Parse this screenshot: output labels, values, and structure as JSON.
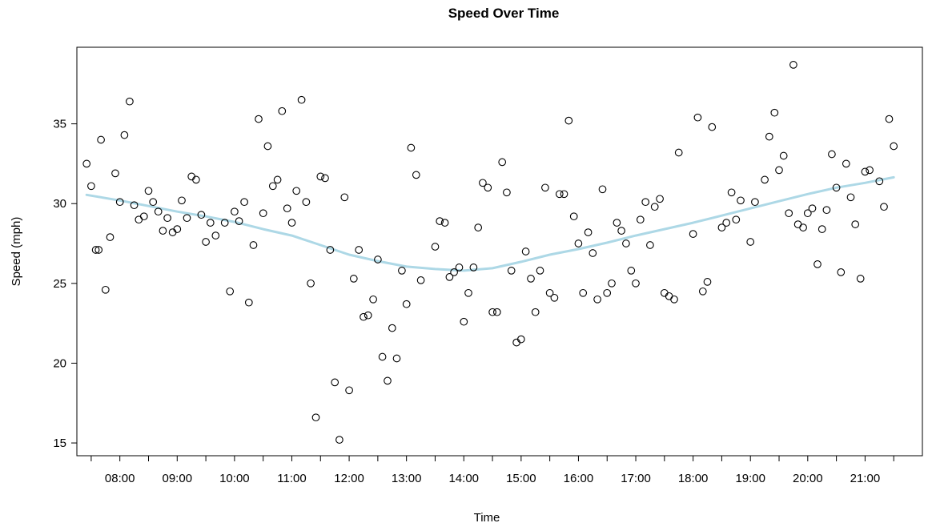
{
  "chart_data": {
    "type": "scatter",
    "title": "Speed Over Time",
    "xlabel": "Time",
    "ylabel": "Speed (mph)",
    "x_tick_labels": [
      "08:00",
      "09:00",
      "10:00",
      "11:00",
      "12:00",
      "13:00",
      "14:00",
      "15:00",
      "16:00",
      "17:00",
      "18:00",
      "19:00",
      "20:00",
      "21:00"
    ],
    "x_ticks_hours": [
      8,
      9,
      10,
      11,
      12,
      13,
      14,
      15,
      16,
      17,
      18,
      19,
      20,
      21
    ],
    "x_minor_ticks_hours": [
      7.5,
      8.5,
      9.5,
      10.5,
      11.5,
      12.5,
      13.5,
      14.5,
      15.5,
      16.5,
      17.5,
      18.5,
      19.5,
      20.5,
      21.5
    ],
    "xlim_hours": [
      7.25,
      22.0
    ],
    "y_ticks": [
      15,
      20,
      25,
      30,
      35
    ],
    "ylim": [
      14.2,
      39.8
    ],
    "grid": false,
    "legend": "none",
    "smooth_color": "#add8e6",
    "point_color": "#000000",
    "points": [
      [
        7.42,
        32.5
      ],
      [
        7.5,
        31.1
      ],
      [
        7.58,
        27.1
      ],
      [
        7.63,
        27.1
      ],
      [
        7.67,
        34.0
      ],
      [
        7.75,
        24.6
      ],
      [
        7.83,
        27.9
      ],
      [
        7.92,
        31.9
      ],
      [
        8.0,
        30.1
      ],
      [
        8.08,
        34.3
      ],
      [
        8.17,
        36.4
      ],
      [
        8.25,
        29.9
      ],
      [
        8.33,
        29.0
      ],
      [
        8.42,
        29.2
      ],
      [
        8.5,
        30.8
      ],
      [
        8.58,
        30.1
      ],
      [
        8.67,
        29.5
      ],
      [
        8.75,
        28.3
      ],
      [
        8.83,
        29.1
      ],
      [
        8.92,
        28.2
      ],
      [
        9.0,
        28.4
      ],
      [
        9.08,
        30.2
      ],
      [
        9.17,
        29.1
      ],
      [
        9.25,
        31.7
      ],
      [
        9.33,
        31.5
      ],
      [
        9.42,
        29.3
      ],
      [
        9.5,
        27.6
      ],
      [
        9.58,
        28.8
      ],
      [
        9.67,
        28.0
      ],
      [
        9.83,
        28.8
      ],
      [
        9.92,
        24.5
      ],
      [
        10.0,
        29.5
      ],
      [
        10.08,
        28.9
      ],
      [
        10.17,
        30.1
      ],
      [
        10.25,
        23.8
      ],
      [
        10.33,
        27.4
      ],
      [
        10.42,
        35.3
      ],
      [
        10.5,
        29.4
      ],
      [
        10.58,
        33.6
      ],
      [
        10.67,
        31.1
      ],
      [
        10.75,
        31.5
      ],
      [
        10.83,
        35.8
      ],
      [
        10.92,
        29.7
      ],
      [
        11.0,
        28.8
      ],
      [
        11.08,
        30.8
      ],
      [
        11.17,
        36.5
      ],
      [
        11.25,
        30.1
      ],
      [
        11.33,
        25.0
      ],
      [
        11.42,
        16.6
      ],
      [
        11.5,
        31.7
      ],
      [
        11.58,
        31.6
      ],
      [
        11.67,
        27.1
      ],
      [
        11.75,
        18.8
      ],
      [
        11.83,
        15.2
      ],
      [
        11.92,
        30.4
      ],
      [
        12.0,
        18.3
      ],
      [
        12.08,
        25.3
      ],
      [
        12.17,
        27.1
      ],
      [
        12.25,
        22.9
      ],
      [
        12.33,
        23.0
      ],
      [
        12.42,
        24.0
      ],
      [
        12.5,
        26.5
      ],
      [
        12.58,
        20.4
      ],
      [
        12.67,
        18.9
      ],
      [
        12.75,
        22.2
      ],
      [
        12.83,
        20.3
      ],
      [
        12.92,
        25.8
      ],
      [
        13.0,
        23.7
      ],
      [
        13.08,
        33.5
      ],
      [
        13.17,
        31.8
      ],
      [
        13.25,
        25.2
      ],
      [
        13.5,
        27.3
      ],
      [
        13.58,
        28.9
      ],
      [
        13.67,
        28.8
      ],
      [
        13.75,
        25.4
      ],
      [
        13.83,
        25.7
      ],
      [
        13.92,
        26.0
      ],
      [
        14.0,
        22.6
      ],
      [
        14.08,
        24.4
      ],
      [
        14.17,
        26.0
      ],
      [
        14.25,
        28.5
      ],
      [
        14.33,
        31.3
      ],
      [
        14.42,
        31.0
      ],
      [
        14.5,
        23.2
      ],
      [
        14.58,
        23.2
      ],
      [
        14.67,
        32.6
      ],
      [
        14.75,
        30.7
      ],
      [
        14.83,
        25.8
      ],
      [
        14.92,
        21.3
      ],
      [
        15.0,
        21.5
      ],
      [
        15.08,
        27.0
      ],
      [
        15.17,
        25.3
      ],
      [
        15.25,
        23.2
      ],
      [
        15.33,
        25.8
      ],
      [
        15.42,
        31.0
      ],
      [
        15.5,
        24.4
      ],
      [
        15.58,
        24.1
      ],
      [
        15.67,
        30.6
      ],
      [
        15.75,
        30.6
      ],
      [
        15.83,
        35.2
      ],
      [
        15.92,
        29.2
      ],
      [
        16.0,
        27.5
      ],
      [
        16.08,
        24.4
      ],
      [
        16.17,
        28.2
      ],
      [
        16.25,
        26.9
      ],
      [
        16.33,
        24.0
      ],
      [
        16.42,
        30.9
      ],
      [
        16.5,
        24.4
      ],
      [
        16.58,
        25.0
      ],
      [
        16.67,
        28.8
      ],
      [
        16.75,
        28.3
      ],
      [
        16.83,
        27.5
      ],
      [
        16.92,
        25.8
      ],
      [
        17.0,
        25.0
      ],
      [
        17.08,
        29.0
      ],
      [
        17.17,
        30.1
      ],
      [
        17.25,
        27.4
      ],
      [
        17.33,
        29.8
      ],
      [
        17.42,
        30.3
      ],
      [
        17.5,
        24.4
      ],
      [
        17.58,
        24.2
      ],
      [
        17.67,
        24.0
      ],
      [
        17.75,
        33.2
      ],
      [
        18.0,
        28.1
      ],
      [
        18.08,
        35.4
      ],
      [
        18.17,
        24.5
      ],
      [
        18.25,
        25.1
      ],
      [
        18.33,
        34.8
      ],
      [
        18.5,
        28.5
      ],
      [
        18.58,
        28.8
      ],
      [
        18.67,
        30.7
      ],
      [
        18.75,
        29.0
      ],
      [
        18.83,
        30.2
      ],
      [
        19.0,
        27.6
      ],
      [
        19.08,
        30.1
      ],
      [
        19.25,
        31.5
      ],
      [
        19.33,
        34.2
      ],
      [
        19.42,
        35.7
      ],
      [
        19.5,
        32.1
      ],
      [
        19.58,
        33.0
      ],
      [
        19.67,
        29.4
      ],
      [
        19.75,
        38.7
      ],
      [
        19.83,
        28.7
      ],
      [
        19.92,
        28.5
      ],
      [
        20.0,
        29.4
      ],
      [
        20.08,
        29.7
      ],
      [
        20.17,
        26.2
      ],
      [
        20.25,
        28.4
      ],
      [
        20.33,
        29.6
      ],
      [
        20.42,
        33.1
      ],
      [
        20.5,
        31.0
      ],
      [
        20.58,
        25.7
      ],
      [
        20.67,
        32.5
      ],
      [
        20.75,
        30.4
      ],
      [
        20.83,
        28.7
      ],
      [
        20.92,
        25.3
      ],
      [
        21.0,
        32.0
      ],
      [
        21.08,
        32.1
      ],
      [
        21.25,
        31.4
      ],
      [
        21.33,
        29.8
      ],
      [
        21.42,
        35.3
      ],
      [
        21.5,
        33.6
      ]
    ],
    "smooth": [
      [
        7.42,
        30.55
      ],
      [
        8.0,
        30.2
      ],
      [
        8.5,
        29.85
      ],
      [
        9.0,
        29.5
      ],
      [
        9.5,
        29.2
      ],
      [
        10.0,
        28.85
      ],
      [
        10.5,
        28.4
      ],
      [
        11.0,
        28.0
      ],
      [
        11.5,
        27.4
      ],
      [
        12.0,
        26.8
      ],
      [
        12.5,
        26.4
      ],
      [
        13.0,
        26.05
      ],
      [
        13.5,
        25.9
      ],
      [
        14.0,
        25.8
      ],
      [
        14.5,
        25.95
      ],
      [
        15.0,
        26.35
      ],
      [
        15.5,
        26.8
      ],
      [
        16.0,
        27.15
      ],
      [
        16.5,
        27.55
      ],
      [
        17.0,
        28.0
      ],
      [
        17.5,
        28.4
      ],
      [
        18.0,
        28.8
      ],
      [
        18.5,
        29.25
      ],
      [
        19.0,
        29.7
      ],
      [
        19.5,
        30.15
      ],
      [
        20.0,
        30.6
      ],
      [
        20.5,
        31.0
      ],
      [
        21.0,
        31.3
      ],
      [
        21.5,
        31.65
      ]
    ]
  }
}
